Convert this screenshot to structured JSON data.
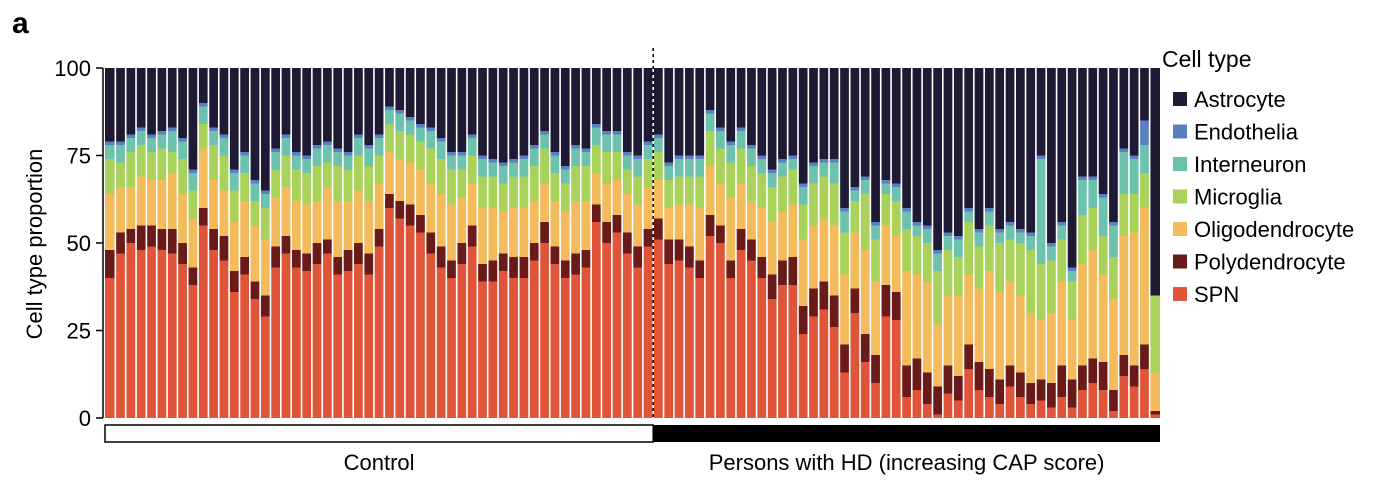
{
  "panel_label": "a",
  "colors": {
    "Astrocyte": "#1e1a33",
    "Endothelia": "#5b7fc0",
    "Interneuron": "#6cc2ad",
    "Microglia": "#a8d25a",
    "Oligodendrocyte": "#f3bb5b",
    "Polydendrocyte": "#6a1a18",
    "SPN": "#e0553a"
  },
  "chart_data": {
    "type": "bar",
    "stacked": true,
    "ylabel": "Cell type proportion",
    "ylim": [
      0,
      100
    ],
    "yticks": [
      "0",
      "25",
      "50",
      "75",
      "100"
    ],
    "legend_title": "Cell type",
    "legend_position": "right",
    "groups": [
      {
        "name": "Control",
        "fill": "white",
        "count": 53
      },
      {
        "name": "Persons with HD (increasing CAP score)",
        "fill": "black",
        "count": 49
      }
    ],
    "spn": [
      40,
      47,
      50,
      48,
      49,
      48,
      47,
      44,
      38,
      55,
      48,
      45,
      36,
      41,
      34,
      29,
      43,
      47,
      43,
      42,
      44,
      47,
      41,
      42,
      44,
      41,
      49,
      60,
      57,
      55,
      53,
      47,
      43,
      40,
      44,
      49,
      39,
      39,
      42,
      40,
      40,
      45,
      50,
      44,
      40,
      41,
      43,
      56,
      50,
      53,
      47,
      43,
      49,
      51,
      44,
      45,
      43,
      40,
      52,
      50,
      40,
      48,
      45,
      40,
      34,
      38,
      38,
      24,
      29,
      31,
      26,
      13,
      30,
      16,
      10,
      29,
      28,
      6,
      8,
      4,
      1,
      7,
      5,
      14,
      8,
      6,
      4,
      9,
      6,
      4,
      5,
      3,
      6,
      3,
      8,
      10,
      8,
      2,
      12,
      9,
      14,
      1
    ],
    "poly": [
      8,
      6,
      4,
      7,
      6,
      6,
      7,
      6,
      5,
      5,
      6,
      7,
      6,
      5,
      5,
      6,
      6,
      5,
      5,
      5,
      6,
      4,
      5,
      6,
      6,
      6,
      5,
      4,
      5,
      6,
      5,
      6,
      6,
      5,
      6,
      6,
      5,
      6,
      5,
      6,
      6,
      5,
      6,
      5,
      5,
      6,
      5,
      5,
      6,
      5,
      6,
      6,
      5,
      6,
      7,
      6,
      6,
      5,
      6,
      5,
      5,
      6,
      6,
      6,
      7,
      7,
      8,
      8,
      8,
      8,
      9,
      8,
      7,
      8,
      8,
      9,
      8,
      9,
      9,
      9,
      8,
      8,
      7,
      7,
      8,
      8,
      7,
      6,
      7,
      6,
      6,
      7,
      9,
      8,
      7,
      7,
      8,
      6,
      6,
      6,
      7,
      1
    ],
    "oligo": [
      16,
      13,
      12,
      14,
      13,
      14,
      16,
      14,
      14,
      17,
      14,
      13,
      14,
      16,
      16,
      16,
      14,
      14,
      14,
      14,
      12,
      15,
      16,
      14,
      15,
      15,
      13,
      12,
      12,
      12,
      13,
      14,
      15,
      16,
      13,
      12,
      16,
      15,
      12,
      14,
      14,
      12,
      11,
      13,
      14,
      15,
      14,
      9,
      11,
      10,
      11,
      12,
      12,
      11,
      9,
      10,
      12,
      15,
      14,
      12,
      18,
      13,
      11,
      14,
      15,
      14,
      15,
      19,
      18,
      18,
      20,
      20,
      16,
      24,
      21,
      17,
      16,
      27,
      24,
      26,
      18,
      20,
      23,
      20,
      21,
      28,
      25,
      24,
      22,
      20,
      17,
      20,
      24,
      17,
      29,
      31,
      25,
      26,
      34,
      38,
      39,
      11
    ],
    "micro": [
      10,
      7,
      10,
      9,
      8,
      9,
      6,
      10,
      8,
      7,
      10,
      10,
      9,
      8,
      7,
      9,
      8,
      9,
      9,
      9,
      10,
      7,
      10,
      9,
      10,
      10,
      8,
      8,
      8,
      8,
      8,
      10,
      10,
      10,
      8,
      8,
      9,
      9,
      8,
      9,
      9,
      10,
      10,
      8,
      8,
      10,
      10,
      8,
      9,
      8,
      7,
      8,
      8,
      8,
      8,
      8,
      8,
      9,
      10,
      10,
      10,
      10,
      10,
      10,
      10,
      10,
      10,
      10,
      12,
      12,
      12,
      12,
      9,
      16,
      12,
      9,
      10,
      12,
      11,
      11,
      15,
      13,
      11,
      15,
      12,
      13,
      14,
      12,
      15,
      18,
      16,
      15,
      12,
      11,
      14,
      12,
      11,
      12,
      12,
      11,
      10,
      22
    ],
    "inter": [
      4,
      5,
      4,
      4,
      4,
      4,
      6,
      5,
      5,
      5,
      4,
      5,
      5,
      5,
      5,
      4,
      5,
      5,
      4,
      4,
      5,
      5,
      4,
      4,
      5,
      5,
      5,
      4,
      5,
      4,
      4,
      5,
      5,
      4,
      4,
      5,
      5,
      4,
      5,
      4,
      5,
      5,
      4,
      5,
      4,
      5,
      4,
      5,
      5,
      5,
      4,
      5,
      4,
      4,
      4,
      5,
      5,
      5,
      5,
      5,
      5,
      5,
      5,
      4,
      4,
      4,
      3,
      5,
      5,
      4,
      6,
      6,
      3,
      4,
      4,
      3,
      4,
      5,
      3,
      4,
      5,
      4,
      5,
      3,
      4,
      4,
      3,
      4,
      3,
      4,
      30,
      4,
      4,
      3,
      10,
      8,
      11,
      9,
      12,
      10,
      8,
      0
    ],
    "endo": [
      1,
      1,
      1,
      1,
      1,
      1,
      1,
      1,
      1,
      1,
      1,
      1,
      1,
      1,
      1,
      1,
      1,
      1,
      1,
      1,
      1,
      1,
      1,
      1,
      1,
      1,
      1,
      1,
      1,
      1,
      1,
      1,
      1,
      1,
      1,
      1,
      1,
      1,
      1,
      1,
      1,
      1,
      1,
      1,
      1,
      1,
      1,
      1,
      1,
      1,
      1,
      1,
      1,
      1,
      1,
      1,
      1,
      1,
      1,
      1,
      1,
      1,
      1,
      1,
      1,
      1,
      1,
      1,
      1,
      1,
      1,
      1,
      1,
      1,
      1,
      1,
      1,
      1,
      1,
      1,
      1,
      1,
      1,
      1,
      1,
      1,
      1,
      1,
      1,
      1,
      1,
      1,
      1,
      1,
      1,
      1,
      1,
      1,
      1,
      1,
      7,
      0
    ]
  }
}
